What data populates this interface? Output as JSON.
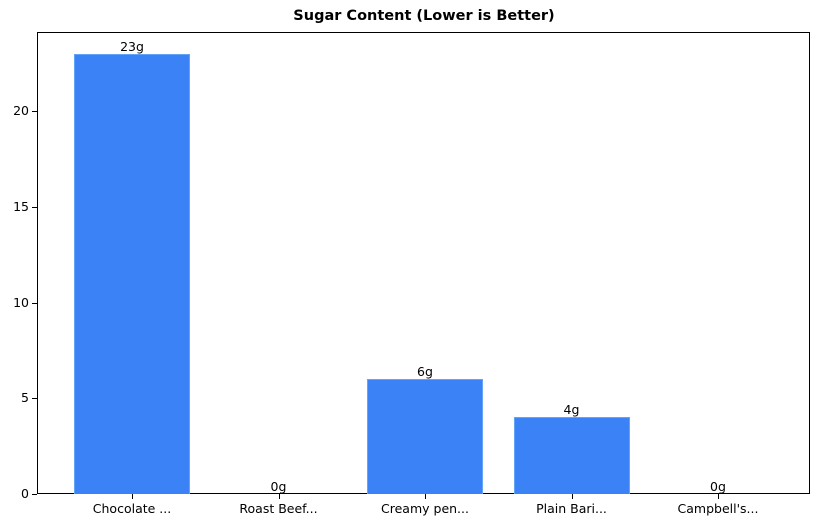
{
  "chart_data": {
    "type": "bar",
    "title": "Sugar Content (Lower is Better)",
    "xlabel": "",
    "ylabel": "",
    "categories": [
      "Chocolate ...",
      "Roast Beef...",
      "Creamy pen...",
      "Plain Bari...",
      "Campbell's..."
    ],
    "values": [
      23,
      0,
      6,
      4,
      0
    ],
    "value_labels": [
      "23g",
      "0g",
      "6g",
      "4g",
      "0g"
    ],
    "ylim": [
      0,
      24.15
    ],
    "yticks": [
      0,
      5,
      10,
      15,
      20
    ],
    "grid": false,
    "legend": null,
    "bar_color": "#3b82f6",
    "bar_edge_color": "#60a5fa"
  }
}
